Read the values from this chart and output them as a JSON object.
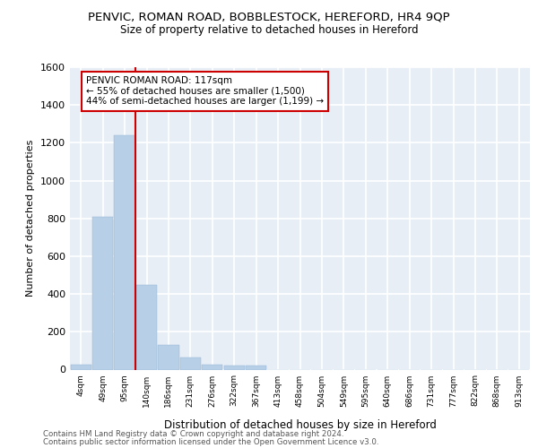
{
  "title_line1": "PENVIC, ROMAN ROAD, BOBBLESTOCK, HEREFORD, HR4 9QP",
  "title_line2": "Size of property relative to detached houses in Hereford",
  "xlabel": "Distribution of detached houses by size in Hereford",
  "ylabel": "Number of detached properties",
  "categories": [
    "4sqm",
    "49sqm",
    "95sqm",
    "140sqm",
    "186sqm",
    "231sqm",
    "276sqm",
    "322sqm",
    "367sqm",
    "413sqm",
    "458sqm",
    "504sqm",
    "549sqm",
    "595sqm",
    "640sqm",
    "686sqm",
    "731sqm",
    "777sqm",
    "822sqm",
    "868sqm",
    "913sqm"
  ],
  "values": [
    25,
    810,
    1240,
    450,
    130,
    65,
    25,
    20,
    20,
    0,
    0,
    0,
    0,
    0,
    0,
    0,
    0,
    0,
    0,
    0,
    0
  ],
  "bar_color": "#b8cfe8",
  "bar_edge_color": "#90b4d4",
  "vline_color": "#cc0000",
  "annotation_text": "PENVIC ROMAN ROAD: 117sqm\n← 55% of detached houses are smaller (1,500)\n44% of semi-detached houses are larger (1,199) →",
  "annotation_box_color": "#ffffff",
  "annotation_box_edge": "#cc0000",
  "ylim": [
    0,
    1600
  ],
  "yticks": [
    0,
    200,
    400,
    600,
    800,
    1000,
    1200,
    1400,
    1600
  ],
  "bg_color": "#e8eef6",
  "grid_color": "#ffffff",
  "footer_line1": "Contains HM Land Registry data © Crown copyright and database right 2024.",
  "footer_line2": "Contains public sector information licensed under the Open Government Licence v3.0."
}
